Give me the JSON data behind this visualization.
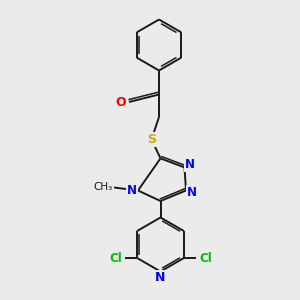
{
  "background_color": "#ebebeb",
  "bond_color": "#1a1a1a",
  "nitrogen_color": "#0000ff",
  "oxygen_color": "#ff0000",
  "sulfur_color": "#ccaa00",
  "chlorine_color": "#00bb00",
  "figsize": [
    3.0,
    3.0
  ],
  "dpi": 100,
  "xlim": [
    0,
    10
  ],
  "ylim": [
    0,
    10
  ]
}
